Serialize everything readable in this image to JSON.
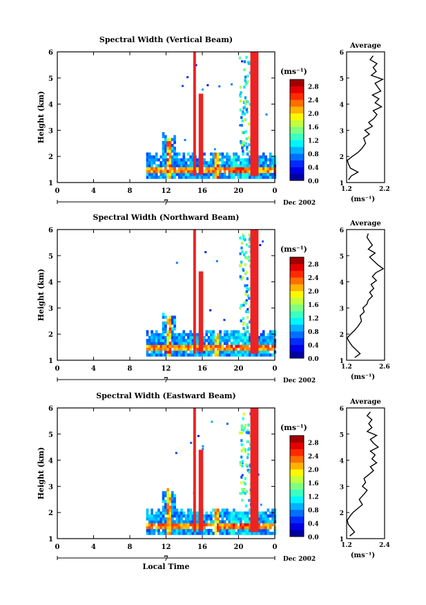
{
  "chart_data": [
    {
      "type": "heatmap",
      "title": "Spectral Width (Vertical Beam)",
      "ylabel": "Height (km)",
      "xlabel": "",
      "xticks": [
        "0",
        "4",
        "8",
        "12",
        "16",
        "20",
        "0"
      ],
      "xlim": [
        0,
        24
      ],
      "yticks": [
        "1",
        "2",
        "3",
        "4",
        "5",
        "6"
      ],
      "ylim": [
        1,
        6
      ],
      "date_label": "Dec 2002",
      "day_label": "7",
      "colorbar": {
        "unit": "(ms⁻¹)",
        "ticks": [
          "0.0",
          "0.4",
          "0.8",
          "1.2",
          "1.6",
          "2.0",
          "2.4",
          "2.8"
        ],
        "range": [
          0,
          3.0
        ]
      },
      "average": {
        "title": "Average",
        "xlabel": "(ms⁻¹)",
        "xticks": [
          "1.2",
          "2.2"
        ],
        "xlim": [
          1.2,
          2.2
        ],
        "heights": [
          1.1,
          1.25,
          1.4,
          1.55,
          1.7,
          1.85,
          2.0,
          2.15,
          2.3,
          2.5,
          2.7,
          2.85,
          3.0,
          3.15,
          3.3,
          3.45,
          3.6,
          3.75,
          3.9,
          4.05,
          4.2,
          4.35,
          4.5,
          4.65,
          4.8,
          4.95,
          5.1,
          5.25,
          5.4,
          5.55,
          5.7,
          5.85
        ],
        "values": [
          1.25,
          1.32,
          1.5,
          1.3,
          1.25,
          1.22,
          1.35,
          1.5,
          1.6,
          1.7,
          1.65,
          1.8,
          1.68,
          1.88,
          1.78,
          1.92,
          2.0,
          1.9,
          2.12,
          1.95,
          2.05,
          1.88,
          2.1,
          2.02,
          1.95,
          2.15,
          1.85,
          1.98,
          1.9,
          2.0,
          1.82,
          1.9
        ]
      }
    },
    {
      "type": "heatmap",
      "title": "Spectral Width (Northward Beam)",
      "ylabel": "Height (km)",
      "xlabel": "",
      "xticks": [
        "0",
        "4",
        "8",
        "12",
        "16",
        "20",
        "0"
      ],
      "xlim": [
        0,
        24
      ],
      "yticks": [
        "1",
        "2",
        "3",
        "4",
        "5",
        "6"
      ],
      "ylim": [
        1,
        6
      ],
      "date_label": "Dec 2002",
      "day_label": "7",
      "colorbar": {
        "unit": "(ms⁻¹)",
        "ticks": [
          "0.0",
          "0.4",
          "0.8",
          "1.2",
          "1.6",
          "2.0",
          "2.4",
          "2.8"
        ],
        "range": [
          0,
          3.0
        ]
      },
      "average": {
        "title": "Average",
        "xlabel": "(ms⁻¹)",
        "xticks": [
          "1.2",
          "2.6"
        ],
        "xlim": [
          1.2,
          2.6
        ],
        "heights": [
          1.1,
          1.25,
          1.4,
          1.55,
          1.7,
          1.85,
          2.0,
          2.15,
          2.3,
          2.5,
          2.7,
          2.85,
          3.0,
          3.15,
          3.3,
          3.45,
          3.6,
          3.75,
          3.9,
          4.05,
          4.2,
          4.35,
          4.5,
          4.65,
          4.8,
          4.95,
          5.1,
          5.25,
          5.4,
          5.55,
          5.7,
          5.85
        ],
        "values": [
          1.5,
          1.7,
          1.55,
          1.4,
          1.3,
          1.22,
          1.35,
          1.5,
          1.62,
          1.75,
          1.7,
          1.85,
          1.8,
          1.95,
          2.0,
          2.15,
          2.05,
          2.2,
          2.1,
          2.3,
          2.15,
          2.28,
          2.55,
          2.35,
          2.2,
          2.05,
          2.25,
          2.0,
          2.15,
          2.05,
          1.95,
          2.0
        ]
      }
    },
    {
      "type": "heatmap",
      "title": "Spectral Width (Eastward Beam)",
      "ylabel": "Height (km)",
      "xlabel": "Local Time",
      "xticks": [
        "0",
        "4",
        "8",
        "12",
        "16",
        "20",
        "0"
      ],
      "xlim": [
        0,
        24
      ],
      "yticks": [
        "1",
        "2",
        "3",
        "4",
        "5",
        "6"
      ],
      "ylim": [
        1,
        6
      ],
      "date_label": "Dec 2002",
      "day_label": "7",
      "colorbar": {
        "unit": "(ms⁻¹)",
        "ticks": [
          "0.0",
          "0.4",
          "0.8",
          "1.2",
          "1.6",
          "2.0",
          "2.4",
          "2.8"
        ],
        "range": [
          0,
          3.0
        ]
      },
      "average": {
        "title": "Average",
        "xlabel": "(ms⁻¹)",
        "xticks": [
          "1.2",
          "2.4"
        ],
        "xlim": [
          1.2,
          2.4
        ],
        "heights": [
          1.1,
          1.25,
          1.4,
          1.55,
          1.7,
          1.85,
          2.0,
          2.15,
          2.3,
          2.5,
          2.7,
          2.85,
          3.0,
          3.15,
          3.3,
          3.45,
          3.6,
          3.75,
          3.9,
          4.05,
          4.2,
          4.35,
          4.5,
          4.65,
          4.8,
          4.95,
          5.1,
          5.25,
          5.4,
          5.55,
          5.7,
          5.85
        ],
        "values": [
          1.3,
          1.45,
          1.35,
          1.25,
          1.22,
          1.3,
          1.4,
          1.55,
          1.7,
          1.6,
          1.75,
          1.85,
          1.7,
          1.8,
          1.75,
          1.9,
          2.05,
          1.95,
          2.15,
          2.0,
          2.1,
          1.95,
          2.2,
          2.05,
          1.95,
          2.15,
          1.85,
          2.0,
          1.9,
          2.0,
          1.85,
          1.95
        ]
      }
    }
  ]
}
